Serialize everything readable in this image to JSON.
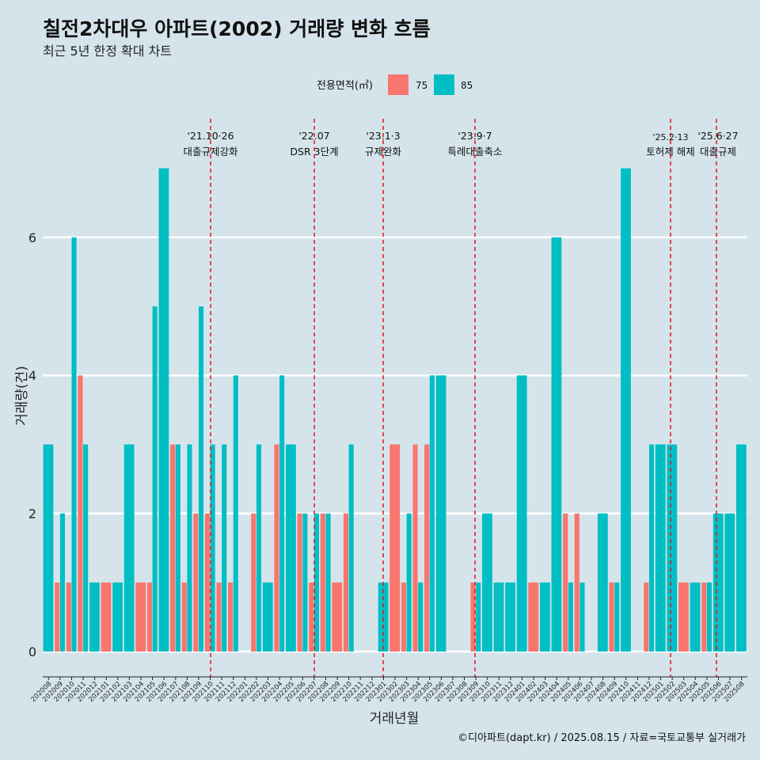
{
  "chart_data": {
    "type": "bar",
    "title": "칠전2차대우 아파트(2002) 거래량 변화 흐름",
    "subtitle": "최근 5년 한정 확대 차트",
    "xlabel": "거래년월",
    "ylabel": "거래량(건)",
    "ylim": [
      -0.3,
      7.8
    ],
    "yticks": [
      0,
      2,
      4,
      6
    ],
    "legend": {
      "title": "전용면적(㎡)",
      "position": "top",
      "entries": [
        {
          "label": "75",
          "color": "#f8766d"
        },
        {
          "label": "85",
          "color": "#00bfc4"
        }
      ]
    },
    "categories": [
      "202008",
      "202009",
      "202010",
      "202011",
      "202012",
      "202101",
      "202102",
      "202103",
      "202104",
      "202105",
      "202106",
      "202107",
      "202108",
      "202109",
      "202110",
      "202111",
      "202112",
      "202201",
      "202202",
      "202203",
      "202204",
      "202205",
      "202206",
      "202207",
      "202208",
      "202209",
      "202210",
      "202211",
      "202212",
      "202301",
      "202302",
      "202303",
      "202304",
      "202305",
      "202306",
      "202307",
      "202308",
      "202309",
      "202310",
      "202311",
      "202312",
      "202401",
      "202402",
      "202403",
      "202404",
      "202405",
      "202406",
      "202407",
      "202408",
      "202409",
      "202410",
      "202411",
      "202412",
      "202501",
      "202502",
      "202503",
      "202504",
      "202505",
      "202506",
      "202507",
      "202508"
    ],
    "series": [
      {
        "name": "75",
        "color": "#f8766d",
        "values": [
          0,
          1,
          1,
          4,
          0,
          1,
          0,
          0,
          1,
          1,
          0,
          3,
          1,
          2,
          2,
          1,
          1,
          0,
          2,
          0,
          3,
          0,
          2,
          1,
          2,
          1,
          2,
          0,
          0,
          0,
          3,
          1,
          3,
          3,
          0,
          0,
          0,
          1,
          0,
          0,
          0,
          0,
          1,
          0,
          0,
          2,
          2,
          0,
          0,
          1,
          0,
          0,
          1,
          0,
          0,
          1,
          0,
          1,
          0,
          0,
          0
        ]
      },
      {
        "name": "85",
        "color": "#00bfc4",
        "values": [
          3,
          2,
          6,
          3,
          1,
          0,
          1,
          3,
          0,
          5,
          7,
          3,
          3,
          5,
          3,
          3,
          4,
          0,
          3,
          1,
          4,
          3,
          2,
          2,
          2,
          0,
          3,
          0,
          0,
          1,
          0,
          2,
          1,
          4,
          4,
          0,
          0,
          1,
          2,
          1,
          1,
          4,
          0,
          1,
          6,
          1,
          1,
          0,
          2,
          1,
          7,
          0,
          3,
          3,
          3,
          0,
          1,
          1,
          2,
          2,
          3
        ]
      }
    ],
    "annotations": [
      {
        "date": "'21.10·26",
        "text": "대출규제강화",
        "small": false
      },
      {
        "date": "'22.07",
        "text": "DSR 3단계",
        "small": false
      },
      {
        "date": "'23.1·3",
        "text": "규제완화",
        "small": false
      },
      {
        "date": "'23.9·7",
        "text": "특례대출축소",
        "small": false
      },
      {
        "date": "'25.2·13",
        "text": "토허제 해제",
        "small": true
      },
      {
        "date": "'25.6·27",
        "text": "대출규제",
        "small": false
      }
    ],
    "caption": "©디아파트(dapt.kr) / 2025.08.15 / 자료=국토교통부 실거래가"
  }
}
